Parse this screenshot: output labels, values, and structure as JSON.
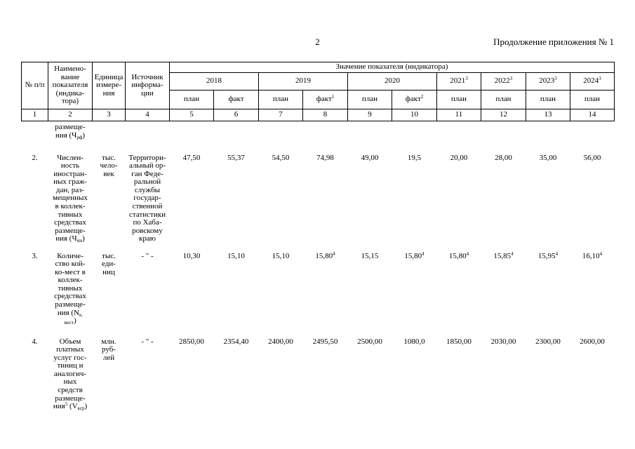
{
  "page": {
    "number": "2",
    "continuation_note": "Продолжение приложения № 1"
  },
  "table": {
    "header": {
      "col_num": "№ п/п",
      "col_name": "Наимено-\nвание\nпоказателя\n(индика-\nтора)",
      "col_unit": "Единица\nизмере-\nния",
      "col_source": "Источник\nинформа-\nции",
      "values_group": "Значение показателя (индикатора)",
      "years": [
        {
          "label": "2018",
          "cols": [
            "план",
            "факт"
          ]
        },
        {
          "label": "2019",
          "cols": [
            "план",
            "факт^1^"
          ]
        },
        {
          "label": "2020",
          "cols": [
            "план",
            "факт^2^"
          ]
        },
        {
          "label": "2021^3^",
          "cols": [
            "план"
          ]
        },
        {
          "label": "2022^3^",
          "cols": [
            "план"
          ]
        },
        {
          "label": "2023^3^",
          "cols": [
            "план"
          ]
        },
        {
          "label": "2024^3^",
          "cols": [
            "план"
          ]
        }
      ],
      "col_numbers": [
        "1",
        "2",
        "3",
        "4",
        "5",
        "6",
        "7",
        "8",
        "9",
        "10",
        "11",
        "12",
        "13",
        "14"
      ]
    },
    "rows": [
      {
        "num": "",
        "name": "размеще-\nния (Ч~рф~)",
        "unit": "",
        "source": "",
        "values": [
          "",
          "",
          "",
          "",
          "",
          "",
          "",
          "",
          "",
          ""
        ]
      },
      {
        "num": "2.",
        "name": "Числен-\nность\nиностран-\nных граж-\nдан, раз-\nмещенных\nв коллек-\nтивных\nсредствах\nразмеще-\nния (Ч~ин~)",
        "unit": "тыс.\nчело-\nвек",
        "source": "Территори-\nальный ор-\nган Феде-\nральной\nслужбы\nгосудар-\nственной\nстатистики\nпо Хаба-\nровскому\nкраю",
        "values": [
          "47,50",
          "55,37",
          "54,50",
          "74,98",
          "49,00",
          "19,5",
          "20,00",
          "28,00",
          "35,00",
          "56,00"
        ]
      },
      {
        "num": "3.",
        "name": "Количе-\nство кой-\nко-мест в\nколлек-\nтивных\nсредствах\nразмеще-\nния (N~к.~\n~мест~)",
        "unit": "тыс.\nеди-\nниц",
        "source": "- \" -",
        "values": [
          "10,30",
          "15,10",
          "15,10",
          "15,80^4^",
          "15,15",
          "15,80^4^",
          "15,80^4^",
          "15,85^4^",
          "15,95^4^",
          "16,10^4^"
        ]
      },
      {
        "num": "4.",
        "name": "Объем\nплатных\nуслуг гос-\nтиниц и\nаналогич-\nных\nсредств\nразмеще-\nния^5^ (V~кср~)",
        "unit": "млн.\nруб-\nлей",
        "source": "- \" -",
        "values": [
          "2850,00",
          "2354,40",
          "2400,00",
          "2495,50",
          "2500,00",
          "1080,0",
          "1850,00",
          "2030,00",
          "2300,00",
          "2600,00"
        ]
      }
    ]
  }
}
